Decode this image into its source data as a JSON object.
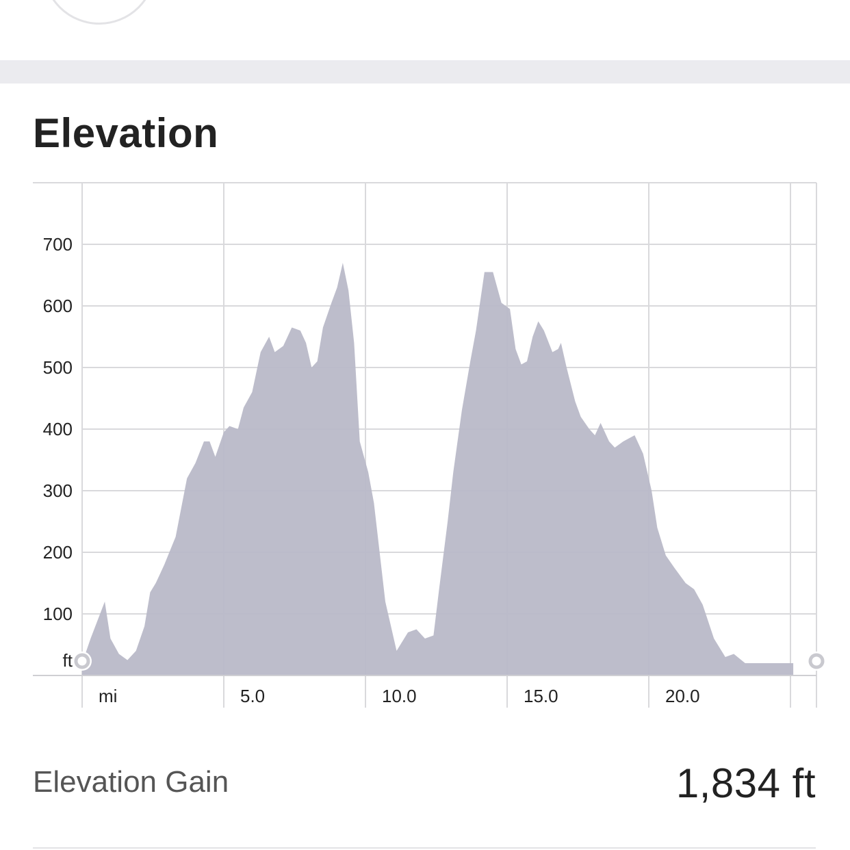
{
  "section": {
    "title": "Elevation"
  },
  "stat": {
    "label": "Elevation Gain",
    "value": "1,834 ft"
  },
  "chart_data": {
    "type": "area",
    "title": "",
    "xlabel": "mi",
    "ylabel": "ft",
    "x_unit": "mi",
    "y_unit": "ft",
    "xlim": [
      0,
      25.9
    ],
    "ylim": [
      0,
      800
    ],
    "x_ticks": [
      0,
      5,
      10,
      15,
      20,
      25
    ],
    "x_tick_labels": [
      "mi",
      "5.0",
      "10.0",
      "15.0",
      "20.0",
      ""
    ],
    "y_ticks": [
      100,
      200,
      300,
      400,
      500,
      600,
      700
    ],
    "y_tick_labels": [
      "100",
      "200",
      "300",
      "400",
      "500",
      "600",
      "700"
    ],
    "grid": true,
    "fill_color": "#b9b9c8",
    "start_marker": "ft",
    "x": [
      0,
      0.3,
      0.8,
      1.0,
      1.3,
      1.6,
      1.9,
      2.2,
      2.4,
      2.6,
      2.7,
      2.9,
      3.3,
      3.7,
      4.0,
      4.3,
      4.5,
      4.7,
      5.0,
      5.2,
      5.5,
      5.7,
      6.0,
      6.3,
      6.6,
      6.8,
      7.1,
      7.4,
      7.7,
      7.9,
      8.1,
      8.3,
      8.5,
      8.8,
      9.0,
      9.2,
      9.4,
      9.6,
      9.8,
      10.1,
      10.3,
      10.7,
      11.1,
      11.5,
      11.8,
      12.1,
      12.4,
      12.6,
      12.9,
      13.1,
      13.4,
      13.7,
      13.9,
      14.2,
      14.5,
      14.8,
      15.1,
      15.3,
      15.5,
      15.7,
      15.9,
      16.1,
      16.3,
      16.6,
      16.8,
      16.9,
      17.1,
      17.4,
      17.6,
      17.9,
      18.1,
      18.3,
      18.6,
      18.8,
      19.1,
      19.5,
      19.8,
      20.1,
      20.3,
      20.6,
      20.9,
      21.3,
      21.6,
      21.9,
      22.3,
      22.7,
      23.0,
      23.4,
      23.6,
      24.0,
      24.4,
      24.7,
      24.9,
      25.1
    ],
    "y": [
      20,
      60,
      120,
      60,
      35,
      25,
      40,
      80,
      135,
      150,
      160,
      180,
      225,
      320,
      345,
      380,
      380,
      355,
      395,
      405,
      400,
      435,
      460,
      525,
      550,
      525,
      535,
      565,
      560,
      540,
      500,
      510,
      565,
      605,
      630,
      670,
      625,
      540,
      380,
      330,
      280,
      120,
      40,
      70,
      75,
      60,
      65,
      140,
      250,
      330,
      430,
      510,
      560,
      655,
      655,
      605,
      595,
      530,
      505,
      510,
      550,
      575,
      560,
      525,
      530,
      540,
      500,
      445,
      420,
      400,
      390,
      410,
      380,
      370,
      380,
      390,
      360,
      300,
      240,
      195,
      175,
      150,
      140,
      115,
      60,
      30,
      35,
      20,
      20,
      20,
      20,
      20,
      20,
      20
    ],
    "grid_color": "#d9d9dc",
    "marker_color": "#c9c9cf"
  }
}
